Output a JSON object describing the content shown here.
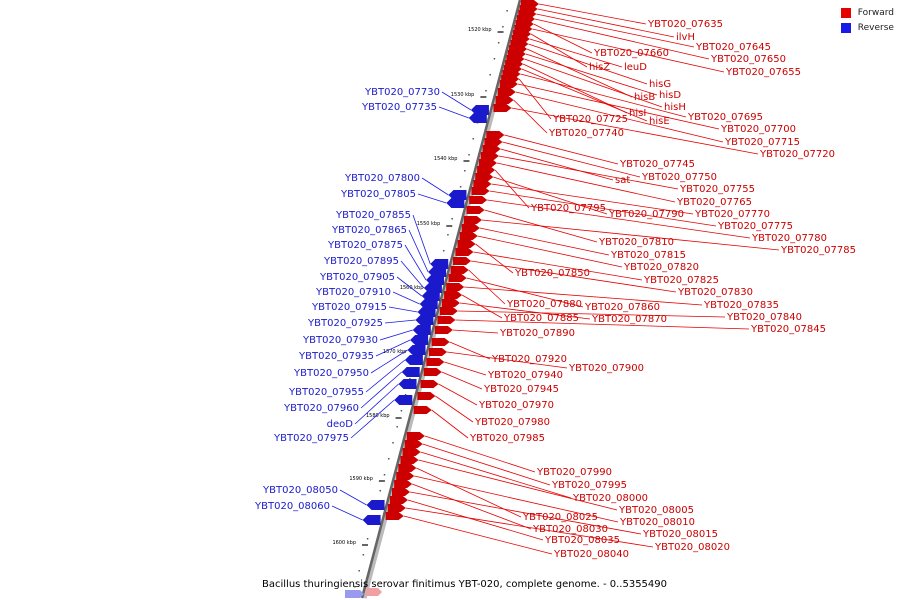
{
  "legend": {
    "forward_label": "Forward",
    "forward_color": "#e60000",
    "reverse_label": "Reverse",
    "reverse_color": "#1a1ae6"
  },
  "caption": "Bacillus thuringiensis serovar finitimus YBT-020, complete genome. - 0..5355490",
  "scale_ticks": [
    "1520 kbp",
    "1530 kbp",
    "1540 kbp",
    "1550 kbp",
    "1560 kbp",
    "1570 kbp",
    "1580 kbp",
    "1590 kbp",
    "1600 kbp"
  ],
  "forward_genes": [
    "YBT020_07635",
    "ilvH",
    "YBT020_07645",
    "YBT020_07650",
    "YBT020_07660",
    "YBT020_07655",
    "hisZ",
    "leuD",
    "hisG",
    "hisB",
    "hisD",
    "hisH",
    "hisI",
    "hisE",
    "YBT020_07695",
    "YBT020_07725",
    "YBT020_07700",
    "YBT020_07715",
    "YBT020_07740",
    "YBT020_07720",
    "YBT020_07745",
    "YBT020_07750",
    "sat",
    "YBT020_07755",
    "YBT020_07765",
    "YBT020_07795",
    "YBT020_07790",
    "YBT020_07770",
    "YBT020_07775",
    "YBT020_07780",
    "YBT020_07810",
    "YBT020_07785",
    "YBT020_07815",
    "YBT020_07820",
    "YBT020_07850",
    "YBT020_07825",
    "YBT020_07830",
    "YBT020_07880",
    "YBT020_07860",
    "YBT020_07835",
    "YBT020_07885",
    "YBT020_07870",
    "YBT020_07840",
    "YBT020_07845",
    "YBT020_07890",
    "YBT020_07920",
    "YBT020_07900",
    "YBT020_07940",
    "YBT020_07945",
    "YBT020_07970",
    "YBT020_07980",
    "YBT020_07985",
    "YBT020_07990",
    "YBT020_07995",
    "YBT020_08000",
    "YBT020_08005",
    "YBT020_08025",
    "YBT020_08010",
    "YBT020_08030",
    "YBT020_08015",
    "YBT020_08035",
    "YBT020_08020",
    "YBT020_08040"
  ],
  "reverse_genes": [
    "YBT020_07730",
    "YBT020_07735",
    "YBT020_07800",
    "YBT020_07805",
    "YBT020_07855",
    "YBT020_07865",
    "YBT020_07875",
    "YBT020_07895",
    "YBT020_07905",
    "YBT020_07910",
    "YBT020_07915",
    "YBT020_07925",
    "YBT020_07930",
    "YBT020_07935",
    "YBT020_07950",
    "YBT020_07955",
    "YBT020_07960",
    "deoD",
    "YBT020_07975",
    "YBT020_08050",
    "YBT020_08060"
  ]
}
